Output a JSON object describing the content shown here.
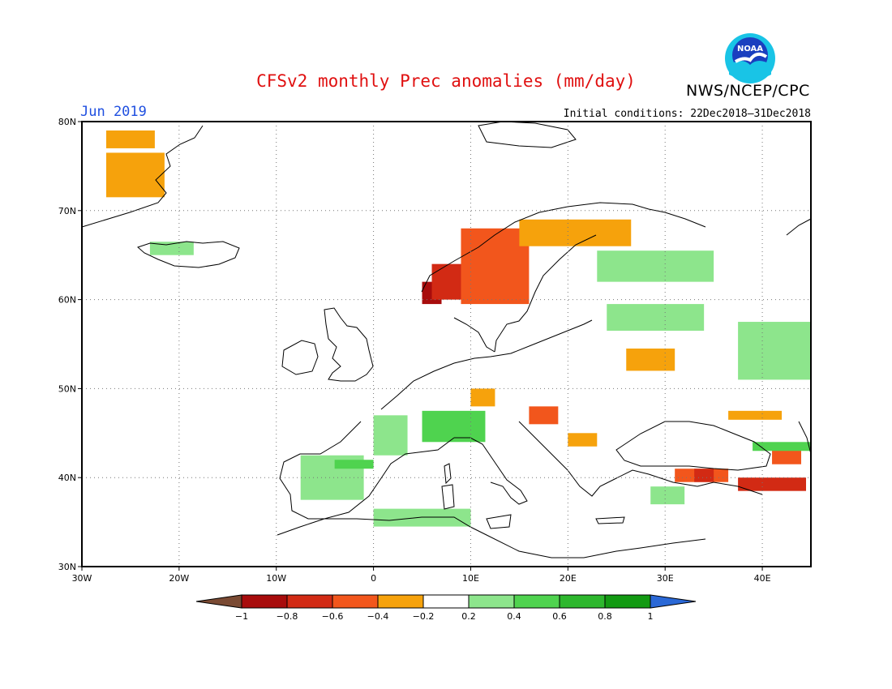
{
  "title": "CFSv2 monthly Prec anomalies (mm/day)",
  "period": "Jun 2019",
  "initial_conditions": "Initial conditions: 22Dec2018–31Dec2018",
  "agency": "NWS/NCEP/CPC",
  "logo_text": "NOAA",
  "map": {
    "lon_range": [
      -30,
      45
    ],
    "lat_range": [
      30,
      80
    ],
    "lon_ticks": [
      {
        "lon": -30,
        "label": "30W"
      },
      {
        "lon": -20,
        "label": "20W"
      },
      {
        "lon": -10,
        "label": "10W"
      },
      {
        "lon": 0,
        "label": "0"
      },
      {
        "lon": 10,
        "label": "10E"
      },
      {
        "lon": 20,
        "label": "20E"
      },
      {
        "lon": 30,
        "label": "30E"
      },
      {
        "lon": 40,
        "label": "40E"
      }
    ],
    "lat_ticks": [
      {
        "lat": 30,
        "label": "30N"
      },
      {
        "lat": 40,
        "label": "40N"
      },
      {
        "lat": 50,
        "label": "50N"
      },
      {
        "lat": 60,
        "label": "60N"
      },
      {
        "lat": 70,
        "label": "70N"
      },
      {
        "lat": 80,
        "label": "80N"
      }
    ],
    "grid": true
  },
  "colorbar": {
    "labels": [
      "−1",
      "−0.8",
      "−0.6",
      "−0.4",
      "−0.2",
      "0.2",
      "0.4",
      "0.6",
      "0.8",
      "1"
    ],
    "colors": [
      "#7a4a33",
      "#a80c0c",
      "#d22a14",
      "#f2561c",
      "#f6a20c",
      "#ffffff",
      "#8de58c",
      "#4fd34f",
      "#2db72d",
      "#129a12",
      "#2a68d6"
    ]
  },
  "anomaly_colors": {
    "-1": "#7a4a33",
    "-0.8": "#a80c0c",
    "-0.6": "#d22a14",
    "-0.4": "#f2561c",
    "-0.2": "#f6a20c",
    "0.2": "#8de58c",
    "0.4": "#4fd34f",
    "0.6": "#2db72d"
  },
  "anomaly_regions": [
    {
      "lon": [
        -27.5,
        -22.5
      ],
      "lat": [
        77,
        79
      ],
      "value": -0.2
    },
    {
      "lon": [
        -27.5,
        -21.5
      ],
      "lat": [
        71.5,
        76.5
      ],
      "value": -0.2
    },
    {
      "lon": [
        -23.0,
        -18.5
      ],
      "lat": [
        65.0,
        66.5
      ],
      "value": 0.2
    },
    {
      "lon": [
        5.0,
        7.0
      ],
      "lat": [
        59.5,
        62.0
      ],
      "value": -0.8
    },
    {
      "lon": [
        6.0,
        12.0
      ],
      "lat": [
        60.0,
        64.0
      ],
      "value": -0.6
    },
    {
      "lon": [
        9.0,
        16.0
      ],
      "lat": [
        59.5,
        68.0
      ],
      "value": -0.4
    },
    {
      "lon": [
        15.0,
        26.5
      ],
      "lat": [
        66.0,
        69.0
      ],
      "value": -0.2
    },
    {
      "lon": [
        23.0,
        35.0
      ],
      "lat": [
        62.0,
        65.5
      ],
      "value": 0.2
    },
    {
      "lon": [
        24.0,
        34.0
      ],
      "lat": [
        56.5,
        59.5
      ],
      "value": 0.2
    },
    {
      "lon": [
        26.0,
        31.0
      ],
      "lat": [
        52.0,
        54.5
      ],
      "value": -0.2
    },
    {
      "lon": [
        37.5,
        45.0
      ],
      "lat": [
        51.0,
        57.5
      ],
      "value": 0.2
    },
    {
      "lon": [
        -7.5,
        -1.0
      ],
      "lat": [
        37.5,
        42.5
      ],
      "value": 0.2
    },
    {
      "lon": [
        -4.0,
        0.0
      ],
      "lat": [
        41.0,
        42.0
      ],
      "value": 0.4
    },
    {
      "lon": [
        0.0,
        3.5
      ],
      "lat": [
        42.5,
        47.0
      ],
      "value": 0.2
    },
    {
      "lon": [
        5.0,
        11.5
      ],
      "lat": [
        44.0,
        47.5
      ],
      "value": 0.4
    },
    {
      "lon": [
        0.0,
        10.0
      ],
      "lat": [
        34.5,
        36.5
      ],
      "value": 0.2
    },
    {
      "lon": [
        10.0,
        12.5
      ],
      "lat": [
        48.0,
        50.0
      ],
      "value": -0.2
    },
    {
      "lon": [
        16.0,
        19.0
      ],
      "lat": [
        46.0,
        48.0
      ],
      "value": -0.4
    },
    {
      "lon": [
        20.0,
        23.0
      ],
      "lat": [
        43.5,
        45.0
      ],
      "value": -0.2
    },
    {
      "lon": [
        31.0,
        36.5
      ],
      "lat": [
        39.5,
        41.0
      ],
      "value": -0.4
    },
    {
      "lon": [
        33.0,
        35.0
      ],
      "lat": [
        39.5,
        41.0
      ],
      "value": -0.6
    },
    {
      "lon": [
        37.5,
        44.5
      ],
      "lat": [
        38.5,
        40.0
      ],
      "value": -0.6
    },
    {
      "lon": [
        41.0,
        44.0
      ],
      "lat": [
        41.5,
        43.5
      ],
      "value": -0.4
    },
    {
      "lon": [
        36.5,
        42.0
      ],
      "lat": [
        46.5,
        47.5
      ],
      "value": -0.2
    },
    {
      "lon": [
        39.0,
        45.0
      ],
      "lat": [
        43.0,
        44.0
      ],
      "value": 0.4
    },
    {
      "lon": [
        28.5,
        32.0
      ],
      "lat": [
        37.0,
        39.0
      ],
      "value": 0.2
    }
  ]
}
